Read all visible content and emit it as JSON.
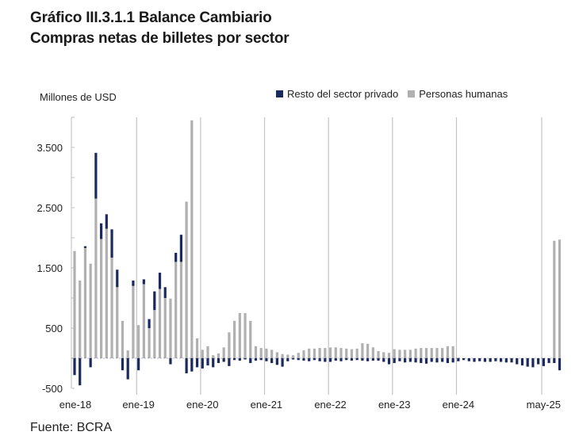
{
  "title_line1": "Gráfico III.3.1.1 Balance Cambiario",
  "title_line2": "Compras netas de billetes por sector",
  "source": "Fuente: BCRA",
  "chart_data": {
    "type": "bar",
    "stacked": true,
    "title": "Compras netas de billetes por sector",
    "ylabel": "Millones de USD",
    "xlabel": "",
    "ylim": [
      -500,
      4000
    ],
    "yticks": [
      -500,
      500,
      1500,
      2500,
      3500
    ],
    "ytick_labels": [
      "-500",
      "500",
      "1.500",
      "2.500",
      "3.500"
    ],
    "xtick_labels": [
      "ene-18",
      "ene-19",
      "ene-20",
      "ene-21",
      "ene-22",
      "ene-23",
      "ene-24",
      "may-25"
    ],
    "xtick_months_index": [
      0,
      12,
      24,
      36,
      48,
      60,
      72,
      88
    ],
    "legend": [
      "Resto del sector privado",
      "Personas humanas"
    ],
    "legend_position": "top-right",
    "colors": {
      "Resto del sector privado": "#1b2a5c",
      "Personas humanas": "#b0b0b0"
    },
    "start_month": "ene-18",
    "frequency": "monthly",
    "series": [
      {
        "name": "Personas humanas",
        "values": [
          1780,
          1290,
          1830,
          1570,
          2650,
          1980,
          2150,
          1670,
          1180,
          620,
          130,
          1200,
          550,
          1230,
          500,
          800,
          1150,
          1000,
          990,
          1600,
          1600,
          2600,
          3950,
          330,
          140,
          200,
          50,
          80,
          180,
          430,
          620,
          750,
          750,
          620,
          200,
          170,
          160,
          140,
          100,
          70,
          60,
          50,
          90,
          130,
          160,
          160,
          170,
          170,
          180,
          180,
          170,
          160,
          150,
          160,
          250,
          240,
          180,
          120,
          100,
          90,
          150,
          140,
          140,
          140,
          160,
          170,
          170,
          170,
          170,
          170,
          200,
          200,
          10,
          0,
          0,
          0,
          0,
          0,
          0,
          0,
          0,
          0,
          0,
          0,
          0,
          0,
          0,
          0,
          0,
          0,
          1950,
          1970
        ]
      },
      {
        "name": "Resto del sector privado",
        "values": [
          -280,
          -450,
          30,
          -150,
          760,
          260,
          240,
          470,
          290,
          -200,
          -350,
          90,
          -200,
          80,
          150,
          310,
          270,
          180,
          -100,
          150,
          450,
          -250,
          -220,
          -150,
          -170,
          -120,
          -150,
          -80,
          -60,
          -130,
          -30,
          -40,
          -20,
          -80,
          -40,
          -30,
          -50,
          -80,
          -110,
          -140,
          -50,
          -20,
          -30,
          -40,
          -50,
          -30,
          -50,
          -60,
          -60,
          -40,
          -50,
          -30,
          -40,
          -30,
          -40,
          -50,
          -40,
          -40,
          -60,
          -100,
          -80,
          -50,
          -70,
          -60,
          -70,
          -80,
          -90,
          -60,
          -70,
          -60,
          -80,
          -70,
          -50,
          -30,
          -50,
          -60,
          -50,
          -60,
          -60,
          -50,
          -60,
          -70,
          -70,
          -100,
          -120,
          -140,
          -150,
          -100,
          -130,
          -80,
          -80,
          -200
        ]
      }
    ]
  }
}
